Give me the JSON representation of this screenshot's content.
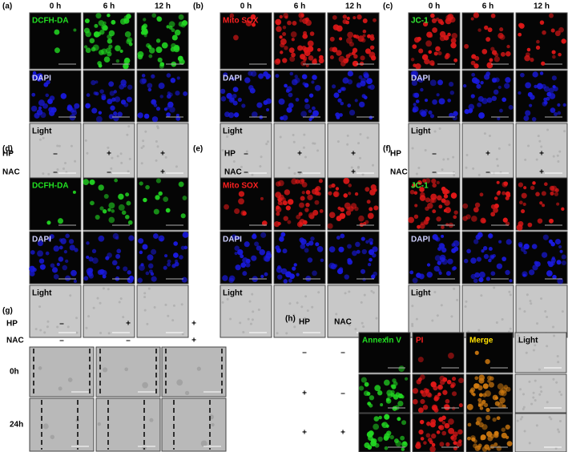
{
  "panels": [
    {
      "label": "(a)",
      "columns": [
        "0 h",
        "6 h",
        "12 h"
      ],
      "rows": [
        "DCFH-DA",
        "DAPI",
        "Light"
      ]
    },
    {
      "label": "(b)",
      "columns": [
        "0 h",
        "6 h",
        "12 h"
      ],
      "rows": [
        "Mito SOX",
        "DAPI",
        "Light"
      ]
    },
    {
      "label": "(c)",
      "columns": [
        "0 h",
        "6 h",
        "12 h"
      ],
      "rows": [
        "JC-1",
        "DAPI",
        "Light"
      ]
    },
    {
      "label": "(d)",
      "treatments": [
        {
          "name": "HP",
          "signs": [
            "–",
            "+",
            "+"
          ]
        },
        {
          "name": "NAC",
          "signs": [
            "–",
            "–",
            "+"
          ]
        }
      ],
      "rows": [
        "DCFH-DA",
        "DAPI",
        "Light"
      ]
    },
    {
      "label": "(e)",
      "treatments": [
        {
          "name": "HP",
          "signs": [
            "–",
            "+",
            "+"
          ]
        },
        {
          "name": "NAC",
          "signs": [
            "–",
            "–",
            "+"
          ]
        }
      ],
      "rows": [
        "Mito SOX",
        "DAPI",
        "Light"
      ]
    },
    {
      "label": "(f)",
      "treatments": [
        {
          "name": "HP",
          "signs": [
            "–",
            "+",
            "+"
          ]
        },
        {
          "name": "NAC",
          "signs": [
            "–",
            "–",
            "+"
          ]
        }
      ],
      "rows": [
        "JC-1",
        "DAPI",
        "Light"
      ]
    },
    {
      "label": "(g)",
      "treatments": [
        {
          "name": "HP",
          "signs": [
            "–",
            "+",
            "+"
          ]
        },
        {
          "name": "NAC",
          "signs": [
            "–",
            "–",
            "+"
          ]
        }
      ],
      "rows": [
        "0h",
        "24h"
      ]
    },
    {
      "label": "(h)",
      "treatment_names": [
        "HP",
        "NAC"
      ],
      "columns": [
        "Annexin V",
        "PI",
        "Merge",
        "Light"
      ],
      "row_signs": [
        [
          "–",
          "–"
        ],
        [
          "+",
          "–"
        ],
        [
          "+",
          "+"
        ]
      ]
    }
  ]
}
